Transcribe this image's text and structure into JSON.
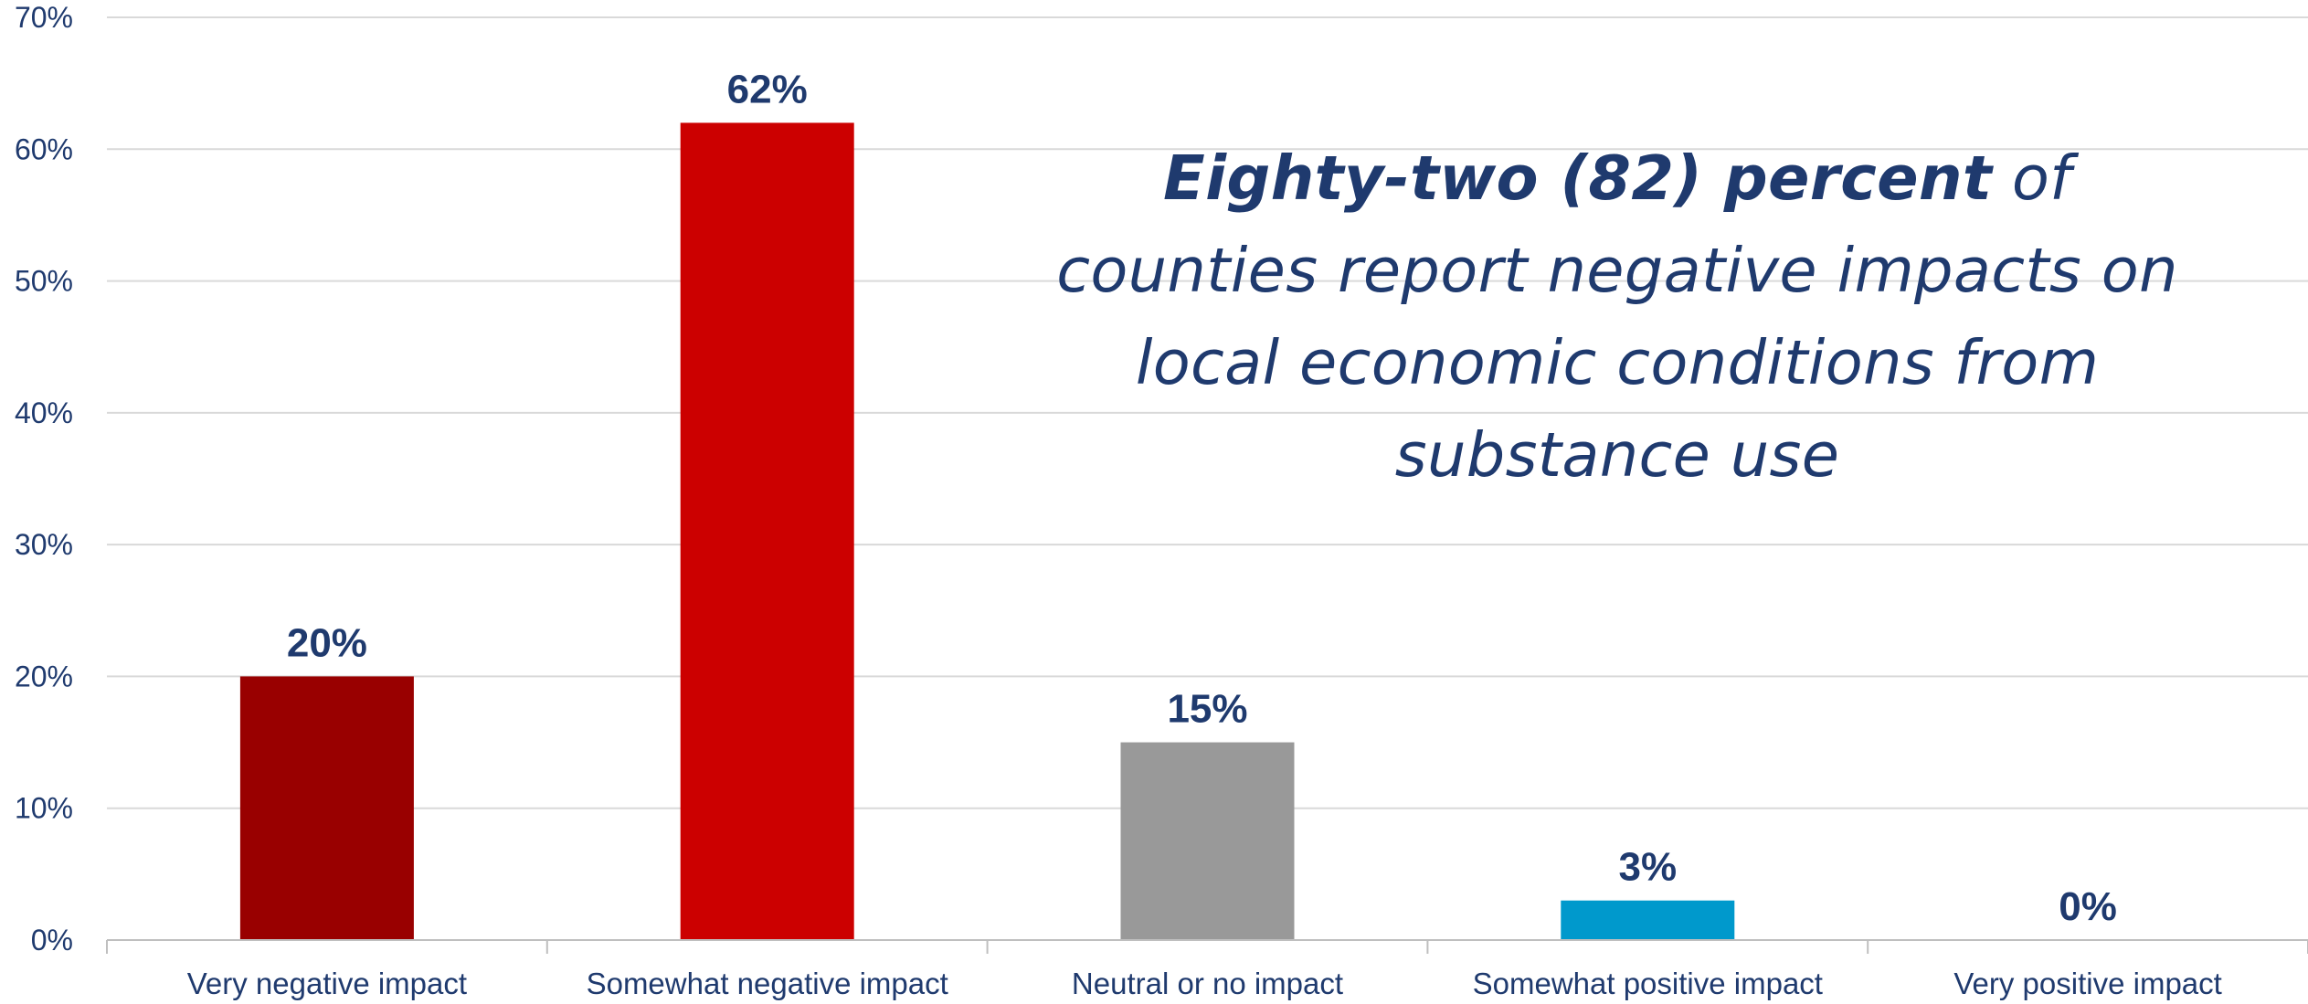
{
  "chart_data": {
    "type": "bar",
    "categories": [
      "Very negative impact",
      "Somewhat negative impact",
      "Neutral or no impact",
      "Somewhat positive impact",
      "Very positive impact"
    ],
    "values": [
      20,
      62,
      15,
      3,
      0
    ],
    "data_labels": [
      "20%",
      "62%",
      "15%",
      "3%",
      "0%"
    ],
    "bar_colors": [
      "#990000",
      "#cc0000",
      "#999999",
      "#0099cc",
      "#0099cc"
    ],
    "ylim": [
      0,
      70
    ],
    "yticks": [
      0,
      10,
      20,
      30,
      40,
      50,
      60,
      70
    ],
    "ytick_labels": [
      "0%",
      "10%",
      "20%",
      "30%",
      "40%",
      "50%",
      "60%",
      "70%"
    ],
    "grid": true,
    "xlabel": "",
    "ylabel": "",
    "annotation": {
      "bold_text": "Eighty-two (82) percent",
      "rest_text": " of counties report negative impacts on local economic conditions from substance use"
    }
  },
  "colors": {
    "text": "#1f3a6e",
    "grid": "#d9d9d9",
    "axis": "#bfbfbf"
  }
}
